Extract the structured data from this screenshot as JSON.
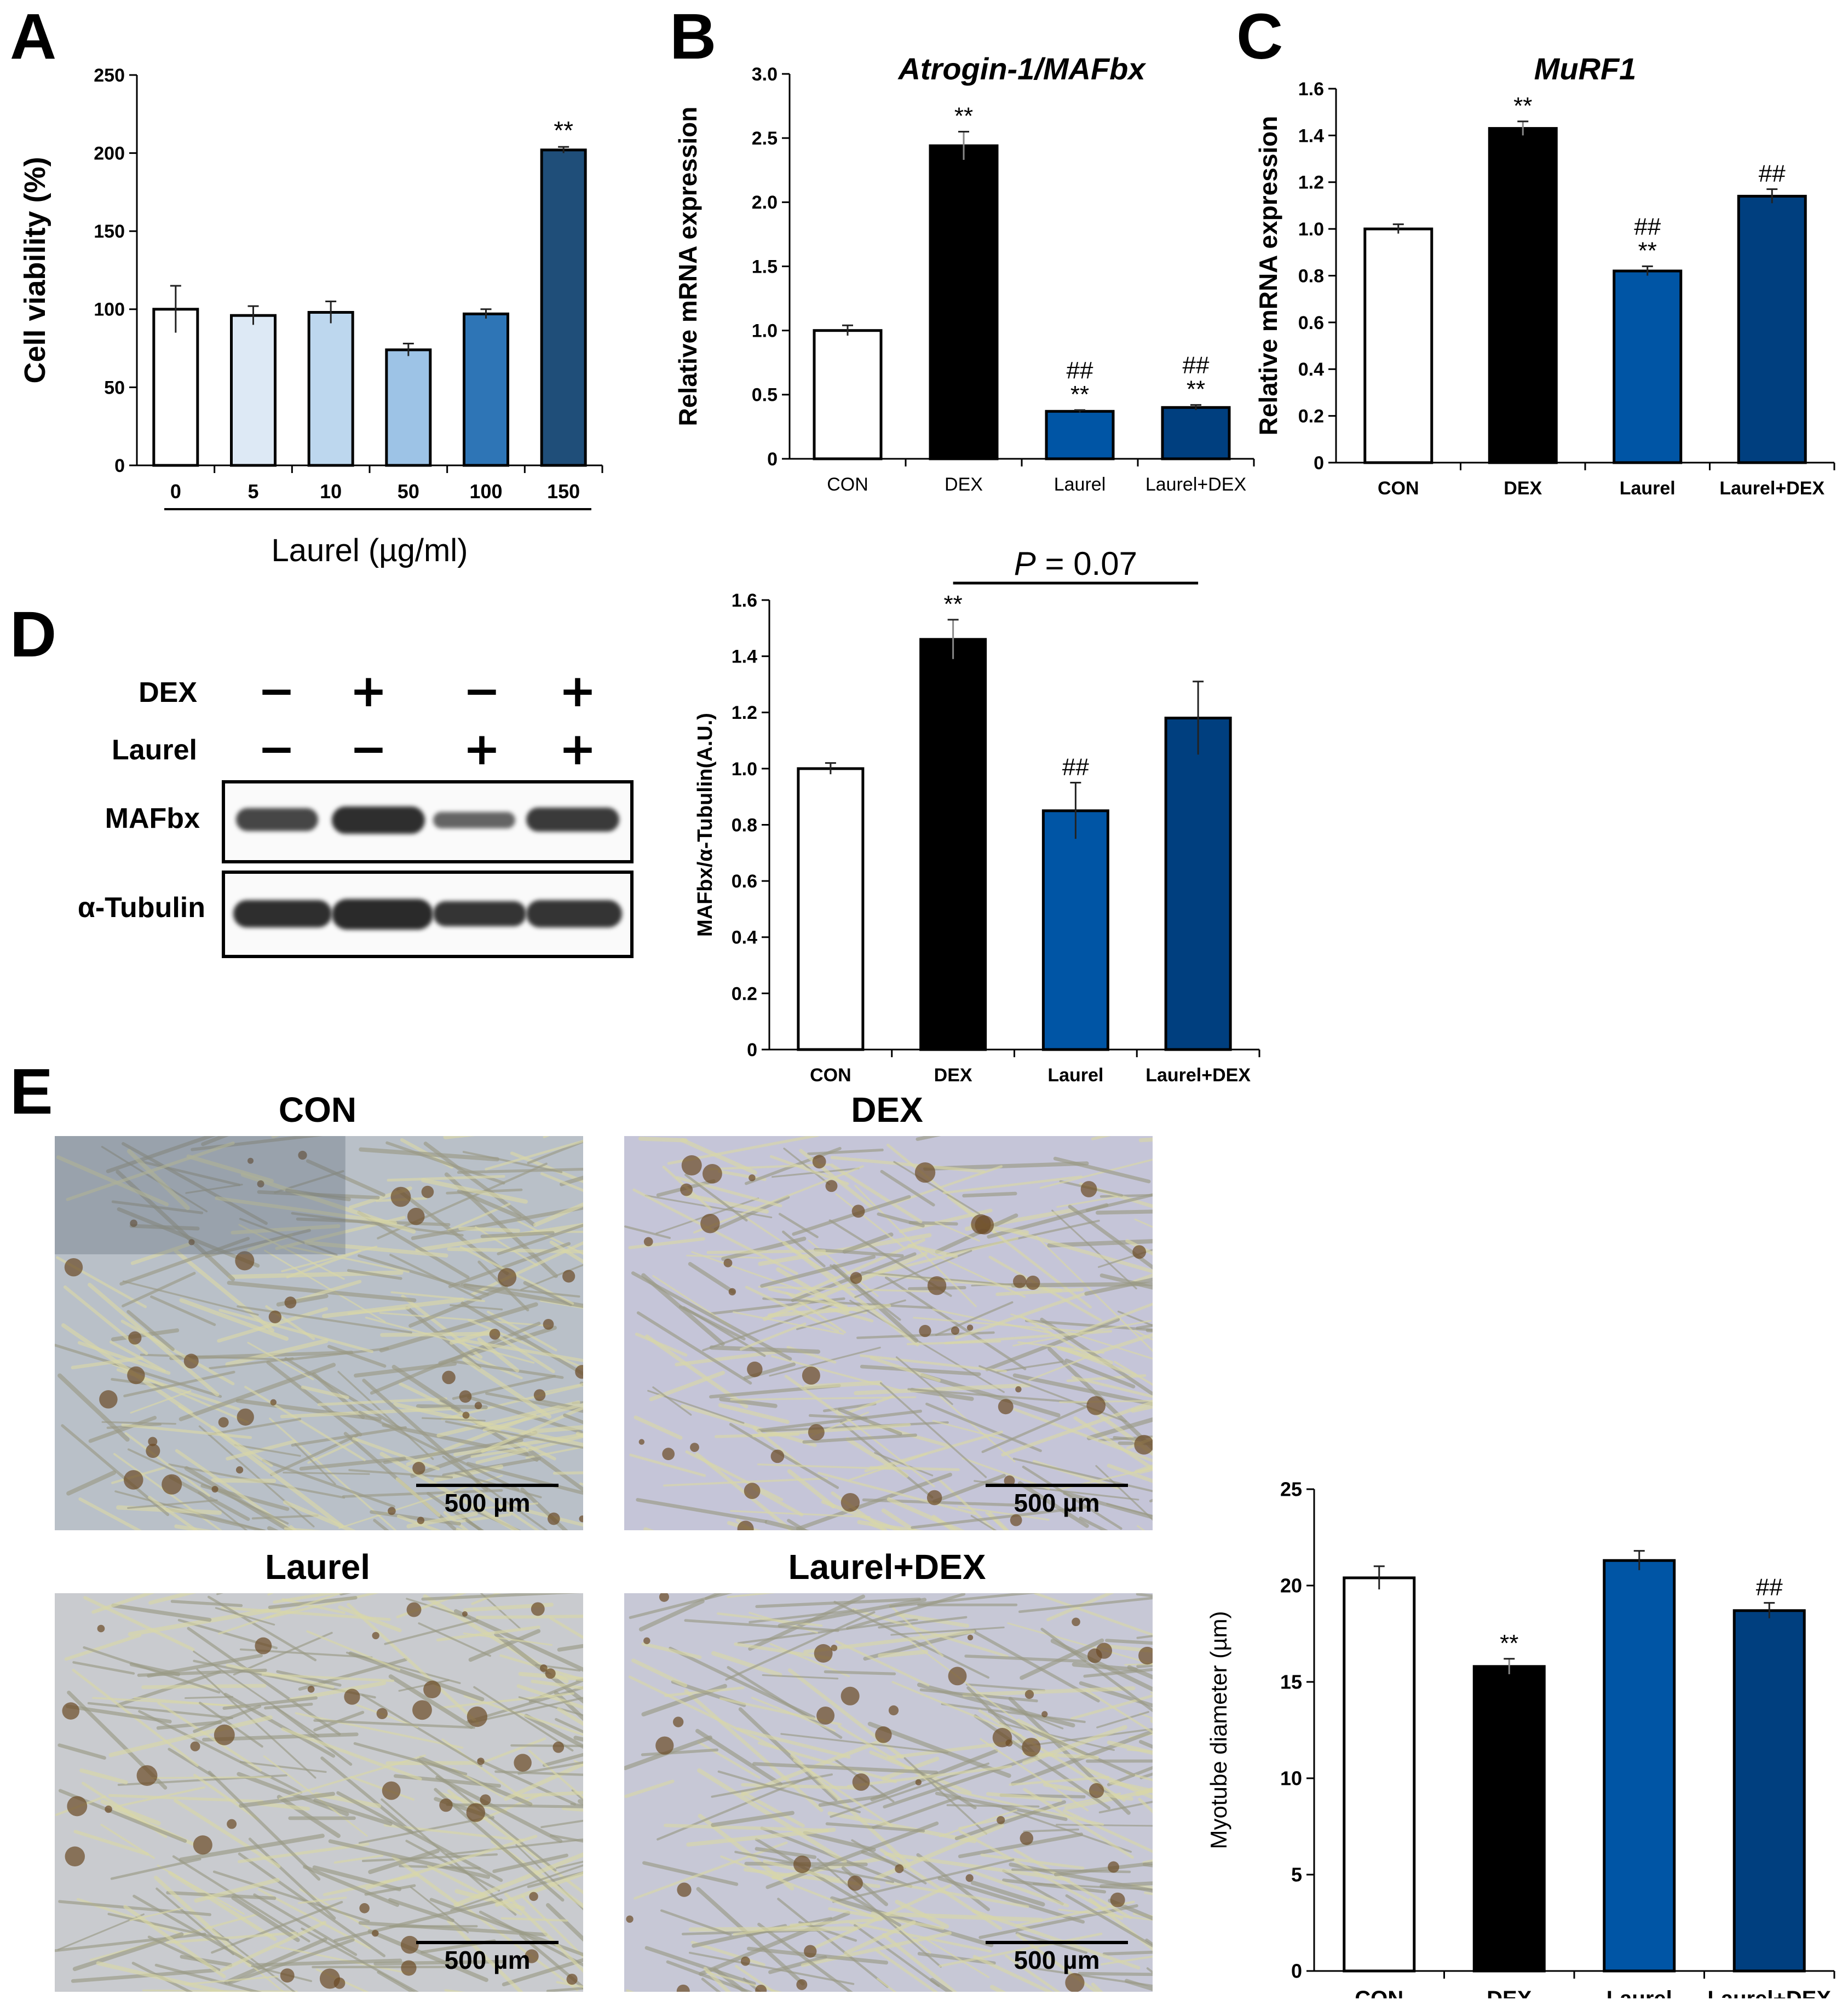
{
  "panels": {
    "A": "A",
    "B": "B",
    "C": "C",
    "D": "D",
    "E": "E"
  },
  "chart_data": [
    {
      "id": "A",
      "type": "bar",
      "title": "",
      "xlabel": "Laurel (µg/ml)",
      "ylabel": "Cell viability (%)",
      "categories": [
        "0",
        "5",
        "10",
        "50",
        "100",
        "150"
      ],
      "values": [
        100,
        96,
        98,
        74,
        97,
        202
      ],
      "errors": [
        15,
        6,
        7,
        4,
        3,
        2
      ],
      "significance": [
        "",
        "",
        "",
        "",
        "",
        "**"
      ],
      "ylim": [
        0,
        250
      ],
      "yticks": [
        "0",
        "50",
        "100",
        "150",
        "200",
        "250"
      ],
      "colors": [
        "#ffffff",
        "#dde9f5",
        "#bdd7ee",
        "#9dc3e6",
        "#2e75b6",
        "#1f4e79"
      ]
    },
    {
      "id": "B",
      "type": "bar",
      "title": "Atrogin-1/MAFbx",
      "xlabel": "",
      "ylabel": "Relative mRNA expression",
      "categories": [
        "CON",
        "DEX",
        "Laurel",
        "Laurel+DEX"
      ],
      "values": [
        1.0,
        2.44,
        0.37,
        0.4
      ],
      "errors": [
        0.04,
        0.11,
        0.01,
        0.02
      ],
      "significance": [
        "",
        "**",
        "##\n**",
        "##\n**"
      ],
      "ylim": [
        0,
        3.0
      ],
      "yticks": [
        "0",
        "0.5",
        "1.0",
        "1.5",
        "2.0",
        "2.5",
        "3.0"
      ],
      "colors": [
        "#ffffff",
        "#000000",
        "#0055a5",
        "#003f7f"
      ]
    },
    {
      "id": "C",
      "type": "bar",
      "title": "MuRF1",
      "xlabel": "",
      "ylabel": "Relative mRNA expression",
      "categories": [
        "CON",
        "DEX",
        "Laurel",
        "Laurel+DEX"
      ],
      "values": [
        1.0,
        1.43,
        0.82,
        1.14
      ],
      "errors": [
        0.02,
        0.03,
        0.02,
        0.03
      ],
      "significance": [
        "",
        "**",
        "##\n**",
        "##"
      ],
      "ylim": [
        0,
        1.6
      ],
      "yticks": [
        "0",
        "0.2",
        "0.4",
        "0.6",
        "0.8",
        "1.0",
        "1.2",
        "1.4",
        "1.6"
      ],
      "colors": [
        "#ffffff",
        "#000000",
        "#0055a5",
        "#003f7f"
      ]
    },
    {
      "id": "D",
      "type": "bar",
      "title": "",
      "xlabel": "",
      "ylabel": "MAFbx/α-Tubulin(A.U.)",
      "categories": [
        "CON",
        "DEX",
        "Laurel",
        "Laurel+DEX"
      ],
      "values": [
        1.0,
        1.46,
        0.85,
        1.18
      ],
      "errors": [
        0.02,
        0.07,
        0.1,
        0.13
      ],
      "significance": [
        "",
        "**",
        "##",
        ""
      ],
      "annotation": "P = 0.07",
      "ylim": [
        0,
        1.6
      ],
      "yticks": [
        "0",
        "0.2",
        "0.4",
        "0.6",
        "0.8",
        "1.0",
        "1.2",
        "1.4",
        "1.6"
      ],
      "colors": [
        "#ffffff",
        "#000000",
        "#0055a5",
        "#003f7f"
      ]
    },
    {
      "id": "E",
      "type": "bar",
      "title": "",
      "xlabel": "",
      "ylabel": "Myotube diameter (µm)",
      "categories": [
        "CON",
        "DEX",
        "Laurel",
        "Laurel+DEX"
      ],
      "values": [
        20.4,
        15.8,
        21.3,
        18.7
      ],
      "errors": [
        0.6,
        0.4,
        0.5,
        0.4
      ],
      "significance": [
        "",
        "**",
        "",
        "##"
      ],
      "ylim": [
        0,
        25
      ],
      "yticks": [
        "0",
        "5",
        "10",
        "15",
        "20",
        "25"
      ],
      "colors": [
        "#ffffff",
        "#000000",
        "#0055a5",
        "#003f7f"
      ]
    }
  ],
  "western_blot": {
    "rows": [
      "DEX",
      "Laurel"
    ],
    "dex_signs": [
      "−",
      "+",
      "−",
      "+"
    ],
    "laurel_signs": [
      "−",
      "−",
      "+",
      "+"
    ],
    "bands": [
      "MAFbx",
      "α-Tubulin"
    ],
    "mafbx_intensity": [
      0.75,
      0.95,
      0.5,
      0.85
    ],
    "tubulin_intensity": [
      0.95,
      0.98,
      0.9,
      0.9
    ]
  },
  "micrographs": {
    "titles": [
      "CON",
      "DEX",
      "Laurel",
      "Laurel+DEX"
    ],
    "scalebar": "500 µm"
  }
}
